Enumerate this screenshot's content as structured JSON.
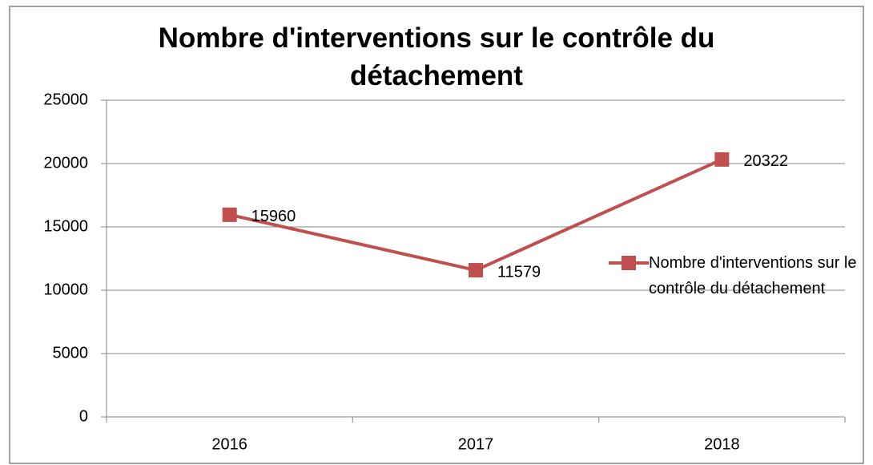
{
  "chart_data": {
    "type": "line",
    "title": "Nombre d'interventions sur le contrôle du détachement",
    "categories": [
      "2016",
      "2017",
      "2018"
    ],
    "series": [
      {
        "name": "Nombre d'interventions sur le contrôle du détachement",
        "color": "#c0504d",
        "values": [
          15960,
          11579,
          20322
        ]
      }
    ],
    "ylim": [
      0,
      25000
    ],
    "yticks": [
      0,
      5000,
      10000,
      15000,
      20000,
      25000
    ],
    "grid": true,
    "legend": "right",
    "data_labels": true
  }
}
